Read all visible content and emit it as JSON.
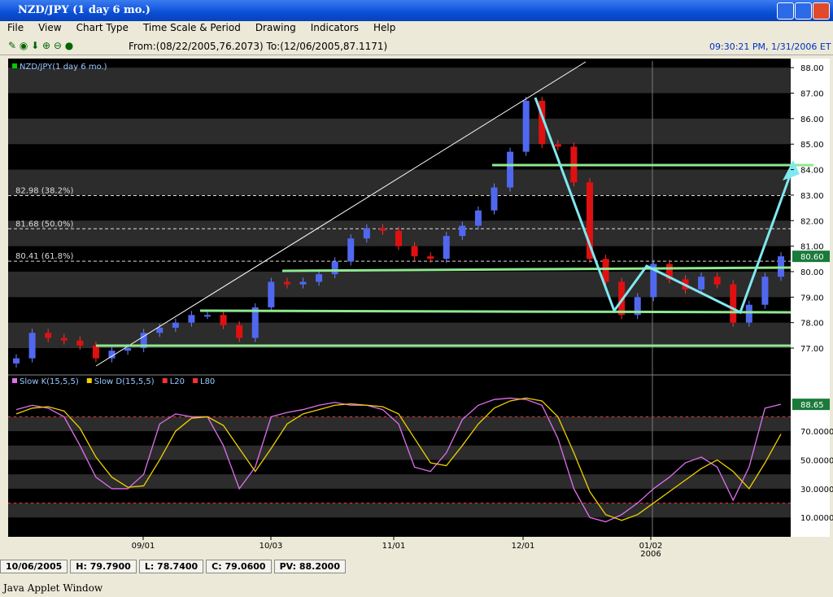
{
  "window": {
    "title": "NZD/JPY (1 day 6 mo.)"
  },
  "menu": [
    "File",
    "View",
    "Chart Type",
    "Time Scale & Period",
    "Drawing",
    "Indicators",
    "Help"
  ],
  "toolbar": {
    "range": "From:(08/22/2005,76.2073) To:(12/06/2005,87.1171)",
    "time": "09:30:21 PM, 1/31/2006 ET"
  },
  "price_panel": {
    "legend": "NZD/JPY(1 day 6 mo.)",
    "ylim": [
      75.98,
      88.26
    ],
    "yticks": [
      {
        "value": 88,
        "label": "88.00"
      },
      {
        "value": 87,
        "label": "87.00"
      },
      {
        "value": 86,
        "label": "86.00"
      },
      {
        "value": 85,
        "label": "85.00"
      },
      {
        "value": 84,
        "label": "84.00"
      },
      {
        "value": 83,
        "label": "83.00"
      },
      {
        "value": 82,
        "label": "82.00"
      },
      {
        "value": 81,
        "label": "81.00"
      },
      {
        "value": 80,
        "label": "80.00"
      },
      {
        "value": 79,
        "label": "79.00"
      },
      {
        "value": 78,
        "label": "78.00"
      },
      {
        "value": 77,
        "label": "77.00"
      }
    ],
    "last": {
      "value": 80.6,
      "label": "80.60"
    },
    "fib": [
      {
        "value": 82.98,
        "label": "82.98 (38.2%)"
      },
      {
        "value": 81.68,
        "label": "81.68 (50.0%)"
      },
      {
        "value": 80.41,
        "label": "80.41 (61.8%)"
      }
    ],
    "open": 76.4,
    "closes": [
      76.6,
      77.6,
      77.4,
      77.3,
      77.1,
      76.6,
      76.9,
      77.0,
      77.6,
      77.8,
      78.0,
      78.3,
      78.3,
      77.9,
      77.4,
      78.6,
      79.6,
      79.5,
      79.6,
      79.9,
      80.4,
      81.3,
      81.7,
      81.6,
      81.0,
      80.6,
      80.5,
      81.4,
      81.8,
      82.4,
      83.3,
      84.7,
      86.7,
      85.0,
      84.9,
      83.5,
      80.5,
      79.6,
      78.3,
      79.0,
      80.3,
      79.7,
      79.3,
      79.8,
      79.5,
      78.0,
      78.7,
      79.8,
      80.6
    ]
  },
  "stoch_panel": {
    "ylim": [
      -2.3,
      108.5
    ],
    "yticks": [
      {
        "value": 70,
        "label": "70.0000"
      },
      {
        "value": 50,
        "label": "50.0000"
      },
      {
        "value": 30,
        "label": "30.0000"
      },
      {
        "value": 10,
        "label": "10.0000"
      }
    ],
    "last": {
      "value": 88.65,
      "label": "88.65"
    },
    "series": [
      {
        "name": "Slow K(15,5,5)",
        "color": "#e070f0",
        "values": [
          85,
          88,
          86,
          80,
          60,
          38,
          30,
          30,
          40,
          75,
          82,
          80,
          80,
          60,
          30,
          45,
          80,
          83,
          85,
          88,
          90,
          88,
          88,
          85,
          75,
          45,
          42,
          55,
          78,
          88,
          92,
          93,
          92,
          88,
          65,
          30,
          10,
          7,
          12,
          20,
          30,
          38,
          48,
          52,
          45,
          22,
          45,
          86,
          88.65
        ]
      },
      {
        "name": "Slow D(15,5,5)",
        "color": "#f0d000",
        "values": [
          82,
          86,
          87,
          84,
          72,
          52,
          38,
          31,
          32,
          50,
          70,
          79,
          80,
          74,
          58,
          42,
          58,
          75,
          82,
          85,
          88,
          89,
          88,
          87,
          82,
          65,
          48,
          46,
          60,
          75,
          86,
          91,
          93,
          91,
          80,
          55,
          28,
          12,
          8,
          12,
          20,
          28,
          36,
          44,
          50,
          42,
          30,
          48,
          68
        ]
      }
    ],
    "levels": [
      {
        "name": "L20",
        "value": 20,
        "color": "#ff3030"
      },
      {
        "name": "L80",
        "value": 80,
        "color": "#ff3030"
      }
    ]
  },
  "x_axis": {
    "labels": [
      "09/01",
      "10/03",
      "11/01",
      "12/01",
      "01/02"
    ],
    "year": "2006"
  },
  "status": [
    "10/06/2005",
    "H: 79.7900",
    "L: 78.7400",
    "C: 79.0600",
    "PV: 88.2000"
  ],
  "footer": "Java Applet Window"
}
